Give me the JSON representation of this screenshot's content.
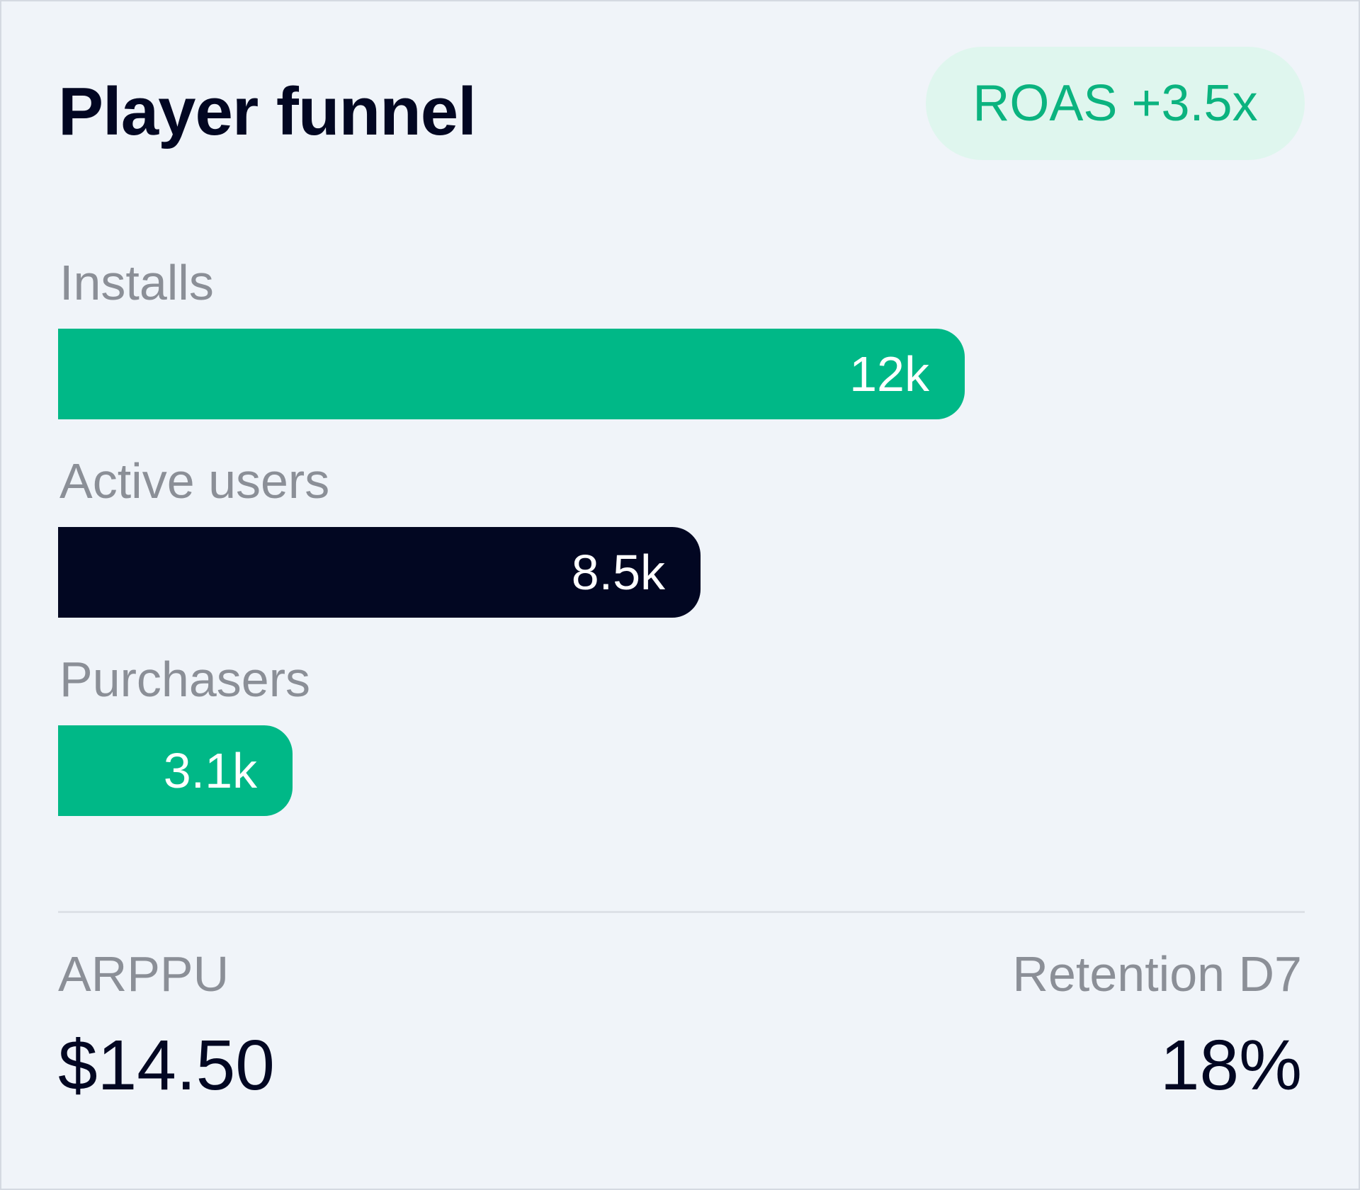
{
  "card": {
    "title": "Player funnel",
    "badge": "ROAS +3.5x"
  },
  "chart_data": {
    "type": "bar",
    "orientation": "horizontal",
    "categories": [
      "Installs",
      "Active users",
      "Purchasers"
    ],
    "values": [
      12000,
      8500,
      3100
    ],
    "value_labels": [
      "12k",
      "8.5k",
      "3.1k"
    ],
    "colors": [
      "#00b887",
      "#020722",
      "#00b887"
    ]
  },
  "metrics": {
    "arppu_label": "ARPPU",
    "arppu_value": "$14.50",
    "retention_label": "Retention D7",
    "retention_value": "18%"
  },
  "colors": {
    "accent": "#00b887",
    "dark": "#020722",
    "badge_bg": "#dff6ee",
    "badge_text": "#0bb37f",
    "muted": "#8b8f97"
  }
}
